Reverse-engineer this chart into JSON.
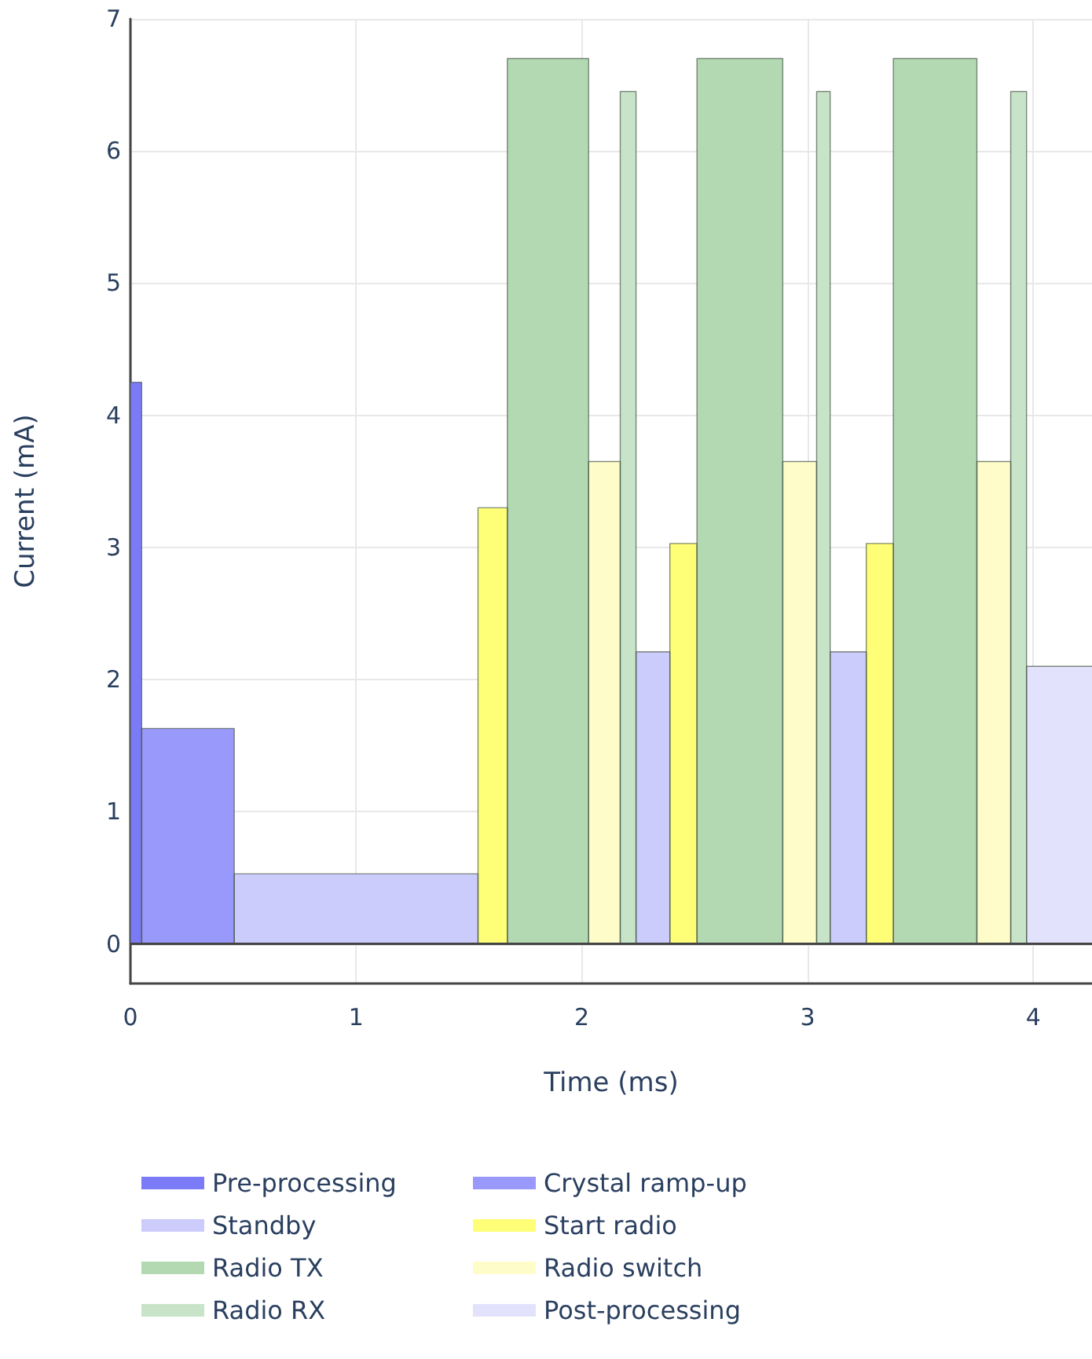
{
  "chart_data": {
    "type": "area",
    "xlabel": "Time (ms)",
    "ylabel": "Current (mA)",
    "xlim": [
      0,
      4.26
    ],
    "ylim": [
      -0.3,
      7
    ],
    "xticks": [
      0,
      1,
      2,
      3,
      4
    ],
    "yticks": [
      0,
      1,
      2,
      3,
      4,
      5,
      6,
      7
    ],
    "grid": true,
    "legend": "bottom",
    "marker": "none",
    "series": [
      {
        "name": "Pre-processing",
        "color": "#7b7bf7",
        "x": [
          0,
          0,
          0.05,
          0.05
        ],
        "values": [
          0,
          4.25,
          4.25,
          0
        ]
      },
      {
        "name": "Crystal ramp-up",
        "color": "#9999fb",
        "x": [
          0.05,
          0.05,
          0.46,
          0.46
        ],
        "values": [
          0,
          1.63,
          1.63,
          0
        ]
      },
      {
        "name": "Standby",
        "color": "#ccccfc",
        "x": [
          0.46,
          0.46,
          1.54,
          1.54,
          2.24,
          2.24,
          2.39,
          2.39,
          3.1,
          3.1,
          3.26,
          3.26
        ],
        "values": [
          0,
          0.53,
          0.53,
          0,
          0,
          2.21,
          2.21,
          0,
          0,
          2.21,
          2.21,
          0
        ]
      },
      {
        "name": "Start radio",
        "color": "#ffff77",
        "x": [
          1.54,
          1.54,
          1.67,
          1.67,
          2.39,
          2.39,
          2.51,
          2.51,
          3.26,
          3.26,
          3.38,
          3.38
        ],
        "values": [
          0,
          3.3,
          3.3,
          0,
          0,
          3.03,
          3.03,
          0,
          0,
          3.03,
          3.03,
          0
        ]
      },
      {
        "name": "Radio TX",
        "color": "#b3d9b3",
        "x": [
          1.67,
          1.67,
          2.03,
          2.03,
          2.51,
          2.51,
          2.89,
          2.89,
          3.38,
          3.38,
          3.75,
          3.75
        ],
        "values": [
          0,
          6.7,
          6.7,
          0,
          0,
          6.7,
          6.7,
          0,
          0,
          6.7,
          6.7,
          0
        ]
      },
      {
        "name": "Radio switch",
        "color": "#fefcc8",
        "x": [
          2.03,
          2.03,
          2.17,
          2.17,
          2.89,
          2.89,
          3.04,
          3.04,
          3.75,
          3.75,
          3.9,
          3.9
        ],
        "values": [
          0,
          3.65,
          3.65,
          0,
          0,
          3.65,
          3.65,
          0,
          0,
          3.65,
          3.65,
          0
        ]
      },
      {
        "name": "Radio RX",
        "color": "#c8e4c8",
        "x": [
          2.17,
          2.17,
          2.24,
          2.24,
          3.04,
          3.04,
          3.1,
          3.1,
          3.9,
          3.9,
          3.97,
          3.97
        ],
        "values": [
          0,
          6.45,
          6.45,
          0,
          0,
          6.45,
          6.45,
          0,
          0,
          6.45,
          6.45,
          0
        ]
      },
      {
        "name": "Post-processing",
        "color": "#e2e2fc",
        "x": [
          3.97,
          3.97,
          4.26
        ],
        "values": [
          0,
          2.1,
          2.1
        ]
      }
    ]
  }
}
